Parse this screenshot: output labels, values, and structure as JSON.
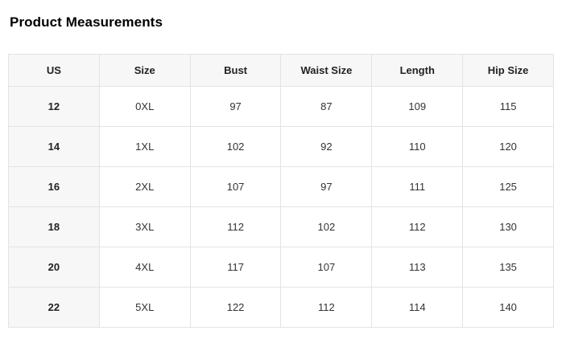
{
  "chart_data": {
    "type": "table",
    "title": "Product Measurements",
    "columns": [
      "US",
      "Size",
      "Bust",
      "Waist Size",
      "Length",
      "Hip Size"
    ],
    "rows": [
      [
        "12",
        "0XL",
        "97",
        "87",
        "109",
        "115"
      ],
      [
        "14",
        "1XL",
        "102",
        "92",
        "110",
        "120"
      ],
      [
        "16",
        "2XL",
        "107",
        "97",
        "111",
        "125"
      ],
      [
        "18",
        "3XL",
        "112",
        "102",
        "112",
        "130"
      ],
      [
        "20",
        "4XL",
        "117",
        "107",
        "113",
        "135"
      ],
      [
        "22",
        "5XL",
        "122",
        "112",
        "114",
        "140"
      ]
    ]
  },
  "colors": {
    "header_bg": "#f7f7f7",
    "row_header_bg": "#f7f7f7",
    "border": "#e3e3e3",
    "title_text": "#000000",
    "header_text": "#222222",
    "cell_text": "#333333"
  }
}
